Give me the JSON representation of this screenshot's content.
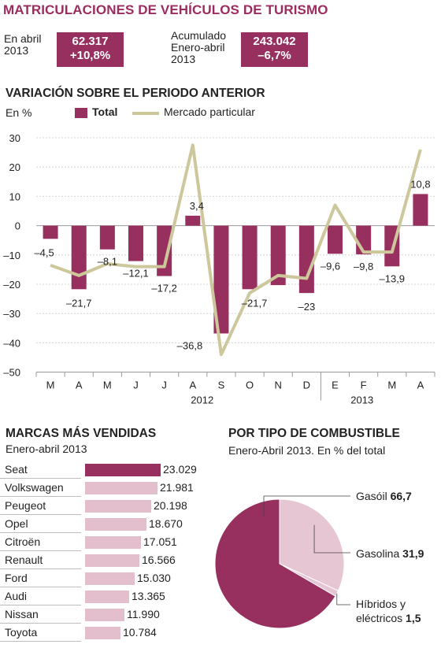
{
  "title": "MATRICULACIONES DE VEHÍCULOS DE TURISMO",
  "kpis": [
    {
      "label_line1": "En abril",
      "label_line2": "2013",
      "value": "62.317",
      "change": "+10,8%"
    },
    {
      "label_line1": "Acumulado",
      "label_line2": "Enero-abril",
      "label_line3": "2013",
      "value": "243.042",
      "change": "–6,7%"
    }
  ],
  "colors": {
    "brand": "#98305f",
    "title": "#9c2b5f",
    "line": "#cdc79c",
    "brand_light": "#e3bfcd",
    "pie_light": "#e6c6d3"
  },
  "chart_data": [
    {
      "type": "bar",
      "title": "VARIACIÓN SOBRE EL PERIODO ANTERIOR",
      "ylabel": "En %",
      "ylim": [
        -50,
        30
      ],
      "yticks": [
        30,
        20,
        10,
        0,
        -10,
        -20,
        -30,
        -40,
        -50
      ],
      "ytick_labels": [
        "30",
        "20",
        "10",
        "0",
        "–10",
        "–20",
        "–30",
        "–40",
        "–50"
      ],
      "categories": [
        "M",
        "A",
        "M",
        "J",
        "J",
        "A",
        "S",
        "O",
        "N",
        "D",
        "E",
        "F",
        "M",
        "A"
      ],
      "year_labels": [
        "2012",
        "2013"
      ],
      "series": [
        {
          "name": "Total",
          "type": "bar",
          "values": [
            -4.5,
            -21.7,
            -8.1,
            -12.1,
            -17.2,
            3.4,
            -36.8,
            -21.7,
            -20.3,
            -23,
            -9.6,
            -9.8,
            -13.9,
            10.8
          ],
          "labels": [
            "–4,5",
            "–21,7",
            "–8,1",
            "–12,1",
            "–17,2",
            "3,4",
            "–36,8",
            "–21,7",
            "",
            "–23",
            "–9,6",
            "–9,8",
            "–13,9",
            "10,8"
          ]
        },
        {
          "name": "Mercado particular",
          "type": "line",
          "values": [
            -13.5,
            -17,
            -13,
            -14,
            -14,
            27.5,
            -44,
            -23,
            -17,
            -18,
            7,
            -9,
            -9,
            26
          ]
        }
      ],
      "legend": "top-left",
      "grid": true
    },
    {
      "type": "bar",
      "title": "MARCAS MÁS VENDIDAS",
      "subtitle": "Enero-abril 2013",
      "categories": [
        "Seat",
        "Volkswagen",
        "Peugeot",
        "Opel",
        "Citroën",
        "Renault",
        "Ford",
        "Audi",
        "Nissan",
        "Toyota"
      ],
      "values": [
        23029,
        21981,
        20198,
        18670,
        17051,
        16566,
        15030,
        13365,
        11990,
        10784
      ],
      "value_labels": [
        "23.029",
        "21.981",
        "20.198",
        "18.670",
        "17.051",
        "16.566",
        "15.030",
        "13.365",
        "11.990",
        "10.784"
      ]
    },
    {
      "type": "pie",
      "title": "POR TIPO DE COMBUSTIBLE",
      "subtitle": "Enero-Abril 2013. En % del total",
      "slices": [
        {
          "label": "Gasóil",
          "value": 66.7,
          "value_label": "66,7"
        },
        {
          "label": "Gasolina",
          "value": 31.9,
          "value_label": "31,9"
        },
        {
          "label_line1": "Híbridos y",
          "label_line2": "eléctricos",
          "value": 1.5,
          "value_label": "1,5"
        }
      ]
    }
  ]
}
